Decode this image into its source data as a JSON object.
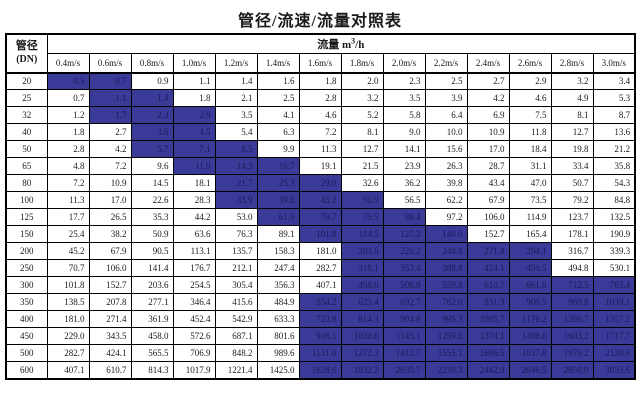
{
  "title": "管径/流速/流量对照表",
  "colors": {
    "highlight_bg": "#3a3a99",
    "highlight_text": "#1b1b5a",
    "border": "#000000",
    "text": "#1a1a1a"
  },
  "table": {
    "corner": {
      "line1": "管径",
      "line2": "(DN)"
    },
    "flow_header": {
      "prefix": "流量 m",
      "sup": "3",
      "suffix": "/h"
    },
    "velocity_headers": [
      "0.4m/s",
      "0.6m/s",
      "0.8m/s",
      "1.0m/s",
      "1.2m/s",
      "1.4m/s",
      "1.6m/s",
      "1.8m/s",
      "2.0m/s",
      "2.2m/s",
      "2.4m/s",
      "2.6m/s",
      "2.8m/s",
      "3.0m/s"
    ],
    "rows": [
      {
        "dn": "20",
        "values": [
          "0.5",
          "0.7",
          "0.9",
          "1.1",
          "1.4",
          "1.6",
          "1.8",
          "2.0",
          "2.3",
          "2.5",
          "2.7",
          "2.9",
          "3.2",
          "3.4"
        ],
        "hl": [
          0,
          1
        ]
      },
      {
        "dn": "25",
        "values": [
          "0.7",
          "1.1",
          "1.4",
          "1.8",
          "2.1",
          "2.5",
          "2.8",
          "3.2",
          "3.5",
          "3.9",
          "4.2",
          "4.6",
          "4.9",
          "5.3"
        ],
        "hl": [
          1,
          2
        ]
      },
      {
        "dn": "32",
        "values": [
          "1.2",
          "1.7",
          "2.3",
          "2.9",
          "3.5",
          "4.1",
          "4.6",
          "5.2",
          "5.8",
          "6.4",
          "6.9",
          "7.5",
          "8.1",
          "8.7"
        ],
        "hl": [
          1,
          3
        ]
      },
      {
        "dn": "40",
        "values": [
          "1.8",
          "2.7",
          "3.6",
          "4.5",
          "5.4",
          "6.3",
          "7.2",
          "8.1",
          "9.0",
          "10.0",
          "10.9",
          "11.8",
          "12.7",
          "13.6"
        ],
        "hl": [
          2,
          3
        ]
      },
      {
        "dn": "50",
        "values": [
          "2.8",
          "4.2",
          "5.7",
          "7.1",
          "8.5",
          "9.9",
          "11.3",
          "12.7",
          "14.1",
          "15.6",
          "17.0",
          "18.4",
          "19.8",
          "21.2"
        ],
        "hl": [
          2,
          4
        ]
      },
      {
        "dn": "65",
        "values": [
          "4.8",
          "7.2",
          "9.6",
          "11.9",
          "14.3",
          "16.7",
          "19.1",
          "21.5",
          "23.9",
          "26.3",
          "28.7",
          "31.1",
          "33.4",
          "35.8"
        ],
        "hl": [
          3,
          5
        ]
      },
      {
        "dn": "80",
        "values": [
          "7.2",
          "10.9",
          "14.5",
          "18.1",
          "21.7",
          "25.3",
          "29.0",
          "32.6",
          "36.2",
          "39.8",
          "43.4",
          "47.0",
          "50.7",
          "54.3"
        ],
        "hl": [
          4,
          6
        ]
      },
      {
        "dn": "100",
        "values": [
          "11.3",
          "17.0",
          "22.6",
          "28.3",
          "33.9",
          "39.6",
          "45.2",
          "50.9",
          "56.5",
          "62.2",
          "67.9",
          "73.5",
          "79.2",
          "84.8"
        ],
        "hl": [
          4,
          7
        ]
      },
      {
        "dn": "125",
        "values": [
          "17.7",
          "26.5",
          "35.3",
          "44.2",
          "53.0",
          "61.9",
          "70.7",
          "79.5",
          "88.4",
          "97.2",
          "106.0",
          "114.9",
          "123.7",
          "132.5"
        ],
        "hl": [
          5,
          8
        ]
      },
      {
        "dn": "150",
        "values": [
          "25.4",
          "38.2",
          "50.9",
          "63.6",
          "76.3",
          "89.1",
          "101.8",
          "114.5",
          "127.2",
          "140.0",
          "152.7",
          "165.4",
          "178.1",
          "190.9"
        ],
        "hl": [
          6,
          9
        ]
      },
      {
        "dn": "200",
        "values": [
          "45.2",
          "67.9",
          "90.5",
          "113.1",
          "135.7",
          "158.3",
          "181.0",
          "203.6",
          "226.2",
          "248.8",
          "271.4",
          "294.1",
          "316.7",
          "339.3"
        ],
        "hl": [
          7,
          11
        ]
      },
      {
        "dn": "250",
        "values": [
          "70.7",
          "106.0",
          "141.4",
          "176.7",
          "212.1",
          "247.4",
          "282.7",
          "318.1",
          "353.4",
          "388.8",
          "424.1",
          "459.5",
          "494.8",
          "530.1"
        ],
        "hl": [
          7,
          11
        ]
      },
      {
        "dn": "300",
        "values": [
          "101.8",
          "152.7",
          "203.6",
          "254.5",
          "305.4",
          "356.3",
          "407.1",
          "458.0",
          "508.9",
          "559.8",
          "610.7",
          "661.6",
          "712.5",
          "763.4"
        ],
        "hl": [
          7,
          13
        ]
      },
      {
        "dn": "350",
        "values": [
          "138.5",
          "207.8",
          "277.1",
          "346.4",
          "415.6",
          "484.9",
          "554.2",
          "623.4",
          "692.7",
          "762.0",
          "831.3",
          "900.5",
          "969.8",
          "1039.1"
        ],
        "hl": [
          6,
          13
        ]
      },
      {
        "dn": "400",
        "values": [
          "181.0",
          "271.4",
          "361.9",
          "452.4",
          "542.9",
          "633.3",
          "723.8",
          "814.3",
          "904.8",
          "995.3",
          "1085.7",
          "1176.2",
          "1266.7",
          "1357.2"
        ],
        "hl": [
          6,
          13
        ]
      },
      {
        "dn": "450",
        "values": [
          "229.0",
          "343.5",
          "458.0",
          "572.6",
          "687.1",
          "801.6",
          "916.1",
          "1030.6",
          "1145.1",
          "1259.6",
          "1374.1",
          "1488.6",
          "1603.2",
          "1717.7"
        ],
        "hl": [
          6,
          13
        ]
      },
      {
        "dn": "500",
        "values": [
          "282.7",
          "424.1",
          "565.5",
          "706.9",
          "848.2",
          "989.6",
          "1131.0",
          "1272.3",
          "1413.7",
          "1555.1",
          "1696.5",
          "1837.8",
          "1979.2",
          "2120.6"
        ],
        "hl": [
          6,
          13
        ]
      },
      {
        "dn": "600",
        "values": [
          "407.1",
          "610.7",
          "814.3",
          "1017.9",
          "1221.4",
          "1425.0",
          "1628.6",
          "1832.2",
          "2035.7",
          "2239.3",
          "2442.9",
          "2646.5",
          "2850.0",
          "3053.6"
        ],
        "hl": [
          6,
          13
        ]
      }
    ]
  }
}
